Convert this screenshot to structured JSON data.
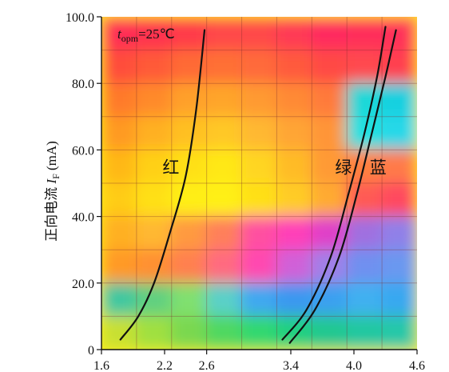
{
  "chart_data": {
    "type": "line",
    "title": "",
    "annotation": {
      "var": "t",
      "sub": "opm",
      "rest": "=25℃"
    },
    "ylabel": {
      "text": "正向电流 ",
      "var": "I",
      "sub": "F",
      "unit": " (mA)"
    },
    "xlabel": "",
    "xlim": [
      1.6,
      4.6
    ],
    "ylim": [
      0,
      100
    ],
    "xticks": [
      "1.6",
      "2.2",
      "2.6",
      "3.4",
      "4.0",
      "4.6"
    ],
    "xtick_values": [
      1.6,
      2.2,
      2.6,
      3.4,
      4.0,
      4.6
    ],
    "yticks": [
      "0",
      "20.0",
      "40.0",
      "60.0",
      "80.0",
      "100.0"
    ],
    "ytick_values": [
      0,
      20,
      40,
      60,
      80,
      100
    ],
    "grid": true,
    "series": [
      {
        "name": "红",
        "color": "#111111",
        "x": [
          1.78,
          1.95,
          2.1,
          2.25,
          2.4,
          2.5,
          2.58
        ],
        "y": [
          3,
          10,
          20,
          35,
          52,
          72,
          96
        ],
        "label_at": [
          2.26,
          53
        ]
      },
      {
        "name": "绿",
        "color": "#111111",
        "x": [
          3.32,
          3.55,
          3.78,
          3.95,
          4.1,
          4.22,
          4.3
        ],
        "y": [
          3,
          12,
          28,
          47,
          65,
          82,
          97
        ],
        "label_at": [
          3.9,
          53
        ]
      },
      {
        "name": "蓝",
        "color": "#111111",
        "x": [
          3.39,
          3.63,
          3.86,
          4.03,
          4.17,
          4.3,
          4.4
        ],
        "y": [
          2,
          12,
          28,
          47,
          65,
          82,
          96
        ],
        "label_at": [
          4.23,
          53
        ]
      }
    ],
    "background_grid_colors": [
      [
        "#ff2d55",
        "#ff3050",
        "#ff3a4a",
        "#ff4a48",
        "#ff4848",
        "#ff3a55",
        "#ff2a5e",
        "#ff2f5a",
        "#ff305a"
      ],
      [
        "#ff4d3a",
        "#ff5a38",
        "#ff6a35",
        "#ff7035",
        "#ff6a3a",
        "#ff5a3e",
        "#ff4a45",
        "#ff4a50",
        "#ff4050"
      ],
      [
        "#ff7a2a",
        "#ff8a2a",
        "#ffa02a",
        "#ffa52c",
        "#ff9a30",
        "#ff8a35",
        "#ff7a3a",
        "#1ad8d8",
        "#18d0e0"
      ],
      [
        "#ff9a20",
        "#ffb020",
        "#ffc020",
        "#ffc825",
        "#ffb830",
        "#ffa535",
        "#ff9538",
        "#20e0e0",
        "#28d8e8"
      ],
      [
        "#ffb815",
        "#ffd015",
        "#ffe014",
        "#ffe818",
        "#ffd520",
        "#ffbb28",
        "#ff9a35",
        "#ff8040",
        "#ff7a48"
      ],
      [
        "#ffcc12",
        "#ffe014",
        "#ffee14",
        "#fff015",
        "#ffe018",
        "#ffcc25",
        "#ffaa30",
        "#ff5a55",
        "#ff4a5e"
      ],
      [
        "#ffb020",
        "#ffb830",
        "#ff9a40",
        "#ff7f5a",
        "#ff50a0",
        "#ff40b8",
        "#e040c8",
        "#a070e0",
        "#9080e8"
      ],
      [
        "#ff9a25",
        "#ff9030",
        "#ff8050",
        "#ff6a80",
        "#ff4ab0",
        "#d060d8",
        "#a080e8",
        "#7090f0",
        "#6a98f0"
      ],
      [
        "#40c8a0",
        "#60d080",
        "#80e070",
        "#5ad0c8",
        "#40a8f0",
        "#3a98f0",
        "#3aa0f0",
        "#40b0f0",
        "#38a8f0"
      ],
      [
        "#c8e030",
        "#a0e040",
        "#7ad850",
        "#50d860",
        "#30d870",
        "#20d080",
        "#20c890",
        "#20c8a0",
        "#28c8a8"
      ]
    ]
  }
}
